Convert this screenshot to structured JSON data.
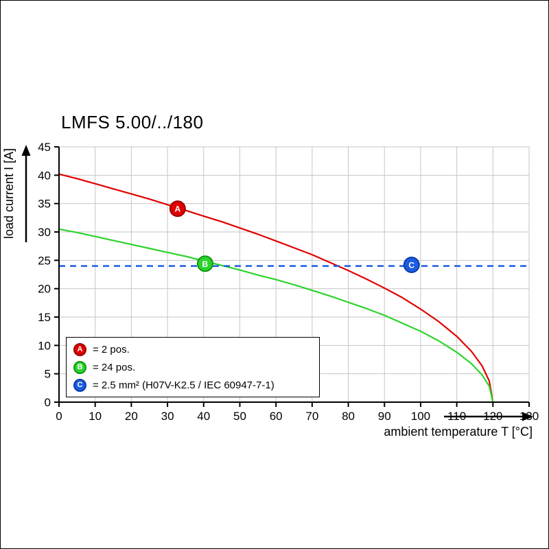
{
  "chart_data": {
    "type": "line",
    "title": "LMFS 5.00/../180",
    "xlabel": "ambient temperature T [°C]",
    "ylabel": "load current I [A]",
    "xlim": [
      0,
      130
    ],
    "ylim": [
      0,
      45
    ],
    "xticks": [
      0,
      10,
      20,
      30,
      40,
      50,
      60,
      70,
      80,
      90,
      100,
      110,
      120,
      130
    ],
    "yticks": [
      0,
      5,
      10,
      15,
      20,
      25,
      30,
      35,
      40,
      45
    ],
    "grid": true,
    "colors": {
      "grid": "#c6c6c6",
      "axis": "#000000",
      "red": "#e10000",
      "green": "#2bd42b",
      "blue": "#1b5ce2"
    },
    "series": [
      {
        "name": "A",
        "label": "2 pos.",
        "color": "#e10000",
        "x": [
          0,
          5,
          10,
          15,
          20,
          25,
          30,
          35,
          40,
          45,
          50,
          55,
          60,
          65,
          70,
          75,
          80,
          85,
          90,
          95,
          100,
          105,
          110,
          114,
          117,
          119,
          120
        ],
        "y": [
          40.2,
          39.4,
          38.5,
          37.6,
          36.7,
          35.8,
          34.8,
          33.8,
          32.8,
          31.8,
          30.7,
          29.6,
          28.4,
          27.2,
          26.0,
          24.6,
          23.2,
          21.7,
          20.1,
          18.4,
          16.4,
          14.2,
          11.6,
          9.0,
          6.4,
          3.7,
          0
        ]
      },
      {
        "name": "B",
        "label": "24 pos.",
        "color": "#2bd42b",
        "x": [
          0,
          5,
          10,
          15,
          20,
          25,
          30,
          35,
          40,
          45,
          50,
          55,
          60,
          65,
          70,
          75,
          80,
          85,
          90,
          95,
          100,
          105,
          110,
          114,
          117,
          119,
          120
        ],
        "y": [
          30.5,
          29.9,
          29.2,
          28.5,
          27.8,
          27.1,
          26.4,
          25.7,
          24.9,
          24.1,
          23.3,
          22.4,
          21.6,
          20.7,
          19.7,
          18.7,
          17.6,
          16.5,
          15.3,
          13.9,
          12.5,
          10.8,
          8.8,
          6.8,
          4.8,
          2.8,
          0
        ]
      },
      {
        "name": "C",
        "label": "2.5 mm² (H07V-K2.5 / IEC 60947-7-1)",
        "color": "#1b5ce2",
        "type": "hline",
        "value": 24,
        "dashed": true
      }
    ],
    "markers": [
      {
        "label": "A",
        "x": 32.8,
        "y": 34.1,
        "color": "#e10000",
        "ring": "#9c0000"
      },
      {
        "label": "B",
        "x": 40.4,
        "y": 24.4,
        "color": "#2bd42b",
        "ring": "#129312"
      },
      {
        "label": "C",
        "x": 97.5,
        "y": 24.2,
        "color": "#1b5ce2",
        "ring": "#0c3da8"
      }
    ],
    "legend": [
      {
        "badge": "A",
        "color": "#e10000",
        "ring": "#9c0000",
        "text": "= 2 pos."
      },
      {
        "badge": "B",
        "color": "#2bd42b",
        "ring": "#129312",
        "text": "= 24 pos."
      },
      {
        "badge": "C",
        "color": "#1b5ce2",
        "ring": "#0c3da8",
        "text": "= 2.5 mm² (H07V-K2.5 / IEC 60947-7-1)"
      }
    ],
    "legend_position": "lower-left"
  }
}
